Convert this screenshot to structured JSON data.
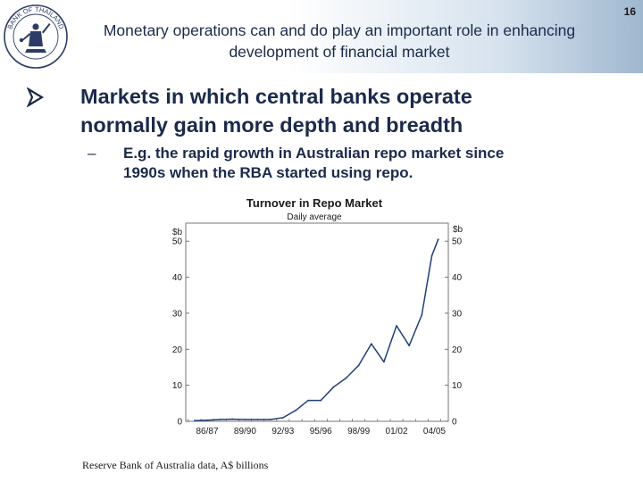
{
  "page_number": "16",
  "slide": {
    "title_line1": "Monetary operations can and do play an important role in enhancing",
    "title_line2": "development of financial market",
    "bullet_icon": "arrow-bullet-icon",
    "bullet_line1": "Markets in which central banks operate",
    "bullet_line2": "normally gain more depth and breadth",
    "sub_dash": "–",
    "sub_line1": "E.g. the rapid growth in Australian repo market since",
    "sub_line2": "1990s when the RBA started using repo.",
    "caption": "Reserve Bank of Australia data, A$ billions"
  },
  "logo": {
    "icon": "central-bank-seal-icon",
    "text": "BANK OF THAILAND"
  },
  "chart_data": {
    "type": "line",
    "title": "Turnover in Repo Market",
    "subtitle": "Daily average",
    "ylabel_left": "$b",
    "ylabel_right": "$b",
    "ylim": [
      0,
      55
    ],
    "yticks": [
      0,
      10,
      20,
      30,
      40,
      50
    ],
    "xticks": [
      "86/87",
      "89/90",
      "92/93",
      "95/96",
      "98/99",
      "01/02",
      "04/05"
    ],
    "line_color": "#1f3f7a",
    "series": [
      {
        "x": [
          1985.5,
          1986.5,
          1987.5,
          1988.5,
          1989.5,
          1990.5,
          1991.5,
          1992.5,
          1993.5,
          1994.5,
          1995.5,
          1996.5,
          1997.5,
          1998.5,
          1999.5,
          2000.5,
          2001.5,
          2002.5,
          2003.5,
          2004.3,
          2004.8
        ],
        "values": [
          0.2,
          0.3,
          0.5,
          0.6,
          0.5,
          0.5,
          0.5,
          1.0,
          3.0,
          5.8,
          5.8,
          9.5,
          12.0,
          15.5,
          21.5,
          16.5,
          26.5,
          21.0,
          29.5,
          46.0,
          50.5
        ]
      }
    ]
  }
}
